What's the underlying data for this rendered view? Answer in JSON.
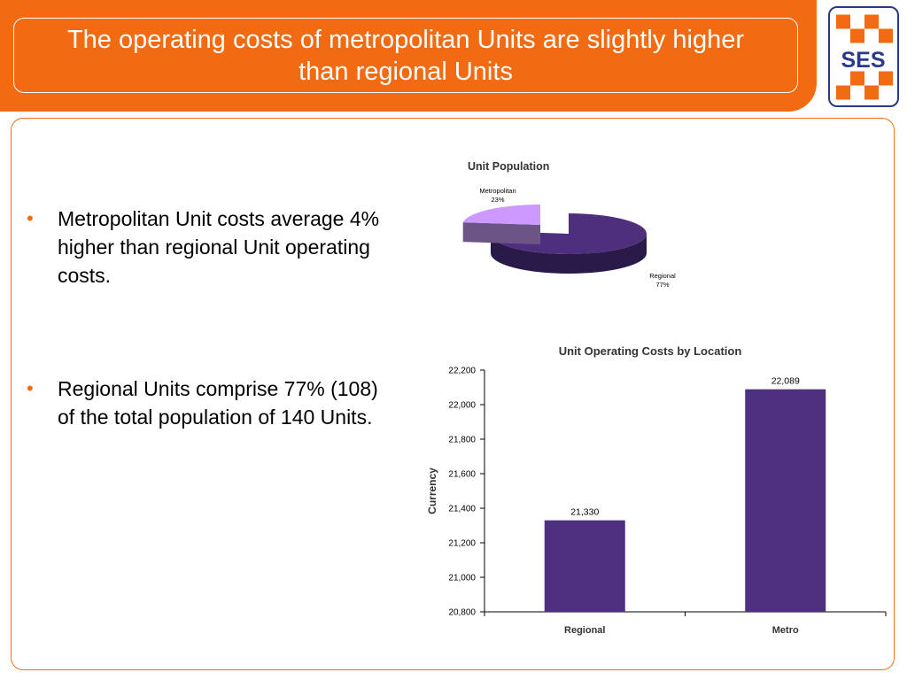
{
  "slide": {
    "title": "The operating costs of metropolitan Units are slightly higher than regional Units",
    "logo_text": "SES",
    "bullets": [
      "Metropolitan Unit costs average 4% higher than regional Unit operating costs.",
      "Regional Units comprise 77% (108) of the total population of 140 Units."
    ]
  },
  "colors": {
    "accent": "#f26b12",
    "logo_navy": "#283a8c",
    "bar_fill": "#4f2f7f",
    "pie_regional": "#4e2f7d",
    "pie_metro": "#cc99ff"
  },
  "chart_data": [
    {
      "type": "pie",
      "title": "Unit Population",
      "slices": [
        {
          "label": "Metropolitan",
          "value": 23,
          "pct_label": "23%"
        },
        {
          "label": "Regional",
          "value": 77,
          "pct_label": "77%"
        }
      ],
      "style": "3d-exploded"
    },
    {
      "type": "bar",
      "title": "Unit Operating Costs by Location",
      "categories": [
        "Regional",
        "Metro"
      ],
      "values": [
        21330,
        22089
      ],
      "value_labels": [
        "21,330",
        "22,089"
      ],
      "xlabel": "",
      "ylabel": "Currency",
      "ylim": [
        20800,
        22200
      ],
      "yticks": [
        20800,
        21000,
        21200,
        21400,
        21600,
        21800,
        22000,
        22200
      ],
      "ytick_labels": [
        "20,800",
        "21,000",
        "21,200",
        "21,400",
        "21,600",
        "21,800",
        "22,000",
        "22,200"
      ],
      "grid": false,
      "legend": "none"
    }
  ]
}
